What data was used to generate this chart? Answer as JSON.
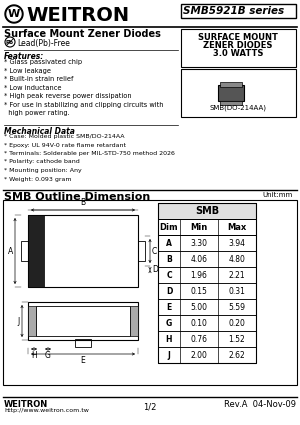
{
  "title_company": "WEITRON",
  "series": "SMB5921B series",
  "product_title": "Surface Mount Zener Diodes",
  "lead_free": "Lead(Pb)-Free",
  "right_box_line1": "SURFACE MOUNT",
  "right_box_line2": "ZENER DIODES",
  "right_box_line3": "3.0 WATTS",
  "package_label": "SMB(DO-214AA)",
  "features_title": "Features:",
  "features": [
    "* Glass passivated chip",
    "* Low leakage",
    "* Built-in strain relief",
    "* Low inductance",
    "* High peak reverse power dissipation",
    "* For use in stabilizing and clipping circuits with",
    "  high power rating."
  ],
  "mech_title": "Mechanical Data",
  "mech_data": [
    "* Case: Molded plastic SMB/DO-214AA",
    "* Epoxy: UL 94V-0 rate flame retardant",
    "* Terminals: Solderable per MIL-STD-750 method 2026",
    "* Polarity: cathode band",
    "* Mounting position: Any",
    "* Weight: 0.093 gram"
  ],
  "outline_title": "SMB Outline Dimension",
  "unit_label": "Unit:mm",
  "table_header": [
    "Dim",
    "Min",
    "Max"
  ],
  "table_data": [
    [
      "A",
      "3.30",
      "3.94"
    ],
    [
      "B",
      "4.06",
      "4.80"
    ],
    [
      "C",
      "1.96",
      "2.21"
    ],
    [
      "D",
      "0.15",
      "0.31"
    ],
    [
      "E",
      "5.00",
      "5.59"
    ],
    [
      "G",
      "0.10",
      "0.20"
    ],
    [
      "H",
      "0.76",
      "1.52"
    ],
    [
      "J",
      "2.00",
      "2.62"
    ]
  ],
  "footer_company": "WEITRON",
  "footer_url": "http://www.weitron.com.tw",
  "footer_page": "1/2",
  "footer_rev": "Rev.A  04-Nov-09",
  "bg_color": "#ffffff"
}
